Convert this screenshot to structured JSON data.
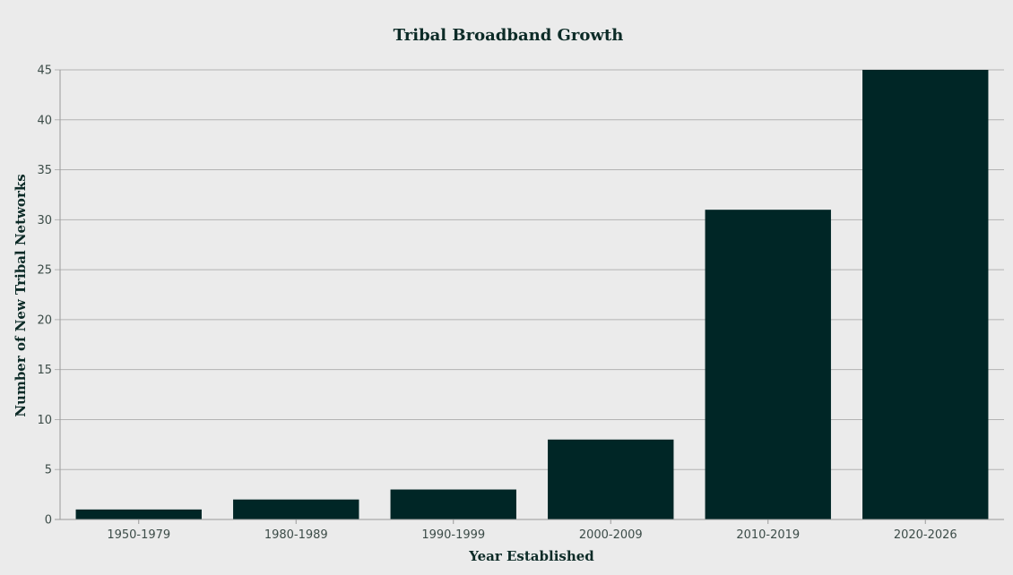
{
  "chart_data": {
    "type": "bar",
    "title": "Tribal Broadband Growth",
    "xlabel": "Year Established",
    "ylabel": "Number of New Tribal Networks",
    "categories": [
      "1950-1979",
      "1980-1989",
      "1990-1999",
      "2000-2009",
      "2010-2019",
      "2020-2026"
    ],
    "values": [
      1,
      2,
      3,
      8,
      31,
      45
    ],
    "ylim": [
      0,
      45
    ],
    "yticks": [
      0,
      5,
      10,
      15,
      20,
      25,
      30,
      35,
      40,
      45
    ],
    "grid": true,
    "bar_color": "#002626"
  }
}
